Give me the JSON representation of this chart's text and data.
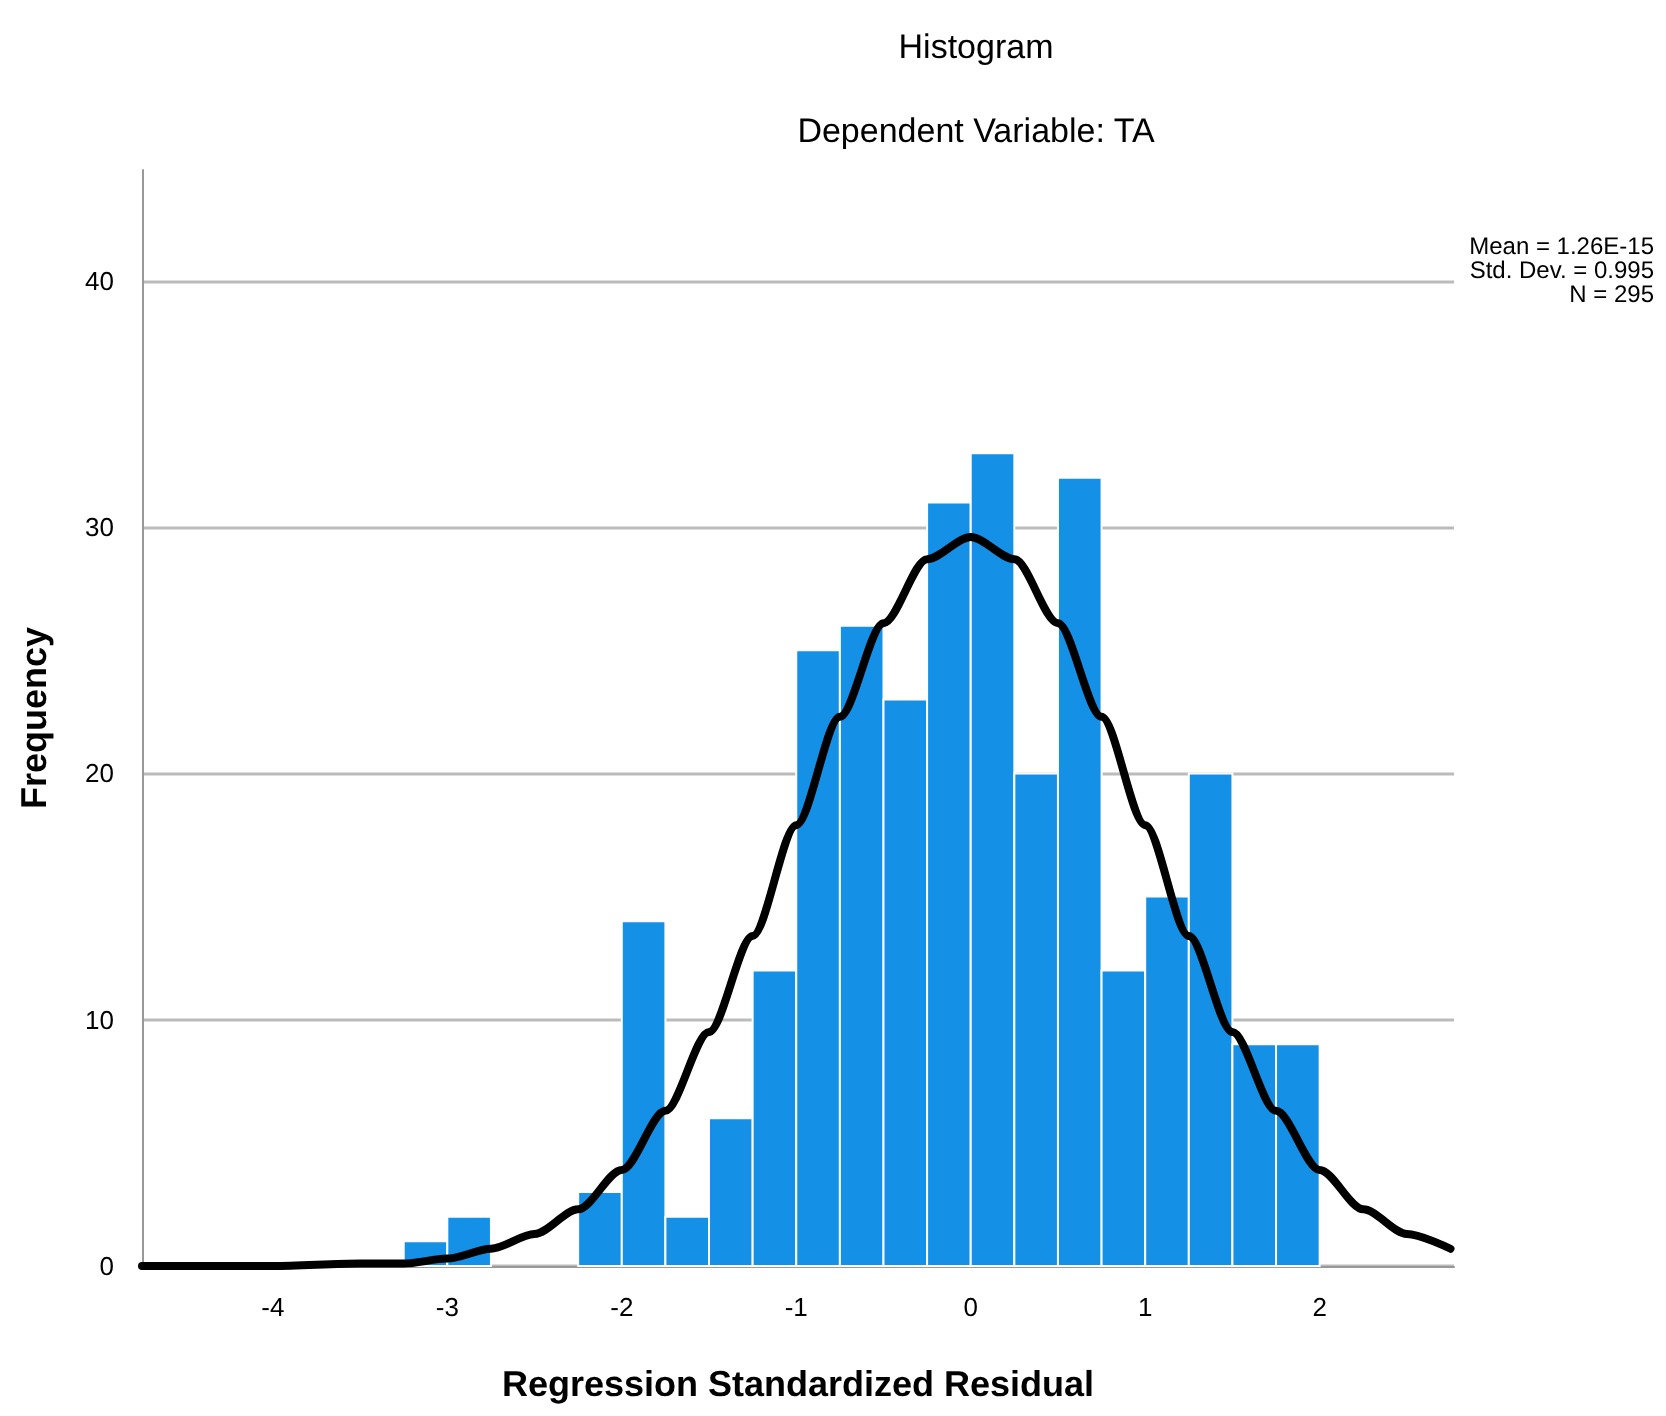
{
  "chart_data": {
    "type": "histogram",
    "title": "Histogram",
    "subtitle": "Dependent Variable: TA",
    "xlabel": "Regression Standardized Residual",
    "ylabel": "Frequency",
    "annotations": [
      "Mean = 1.26E-15",
      "Std. Dev. = 0.995",
      "N = 295"
    ],
    "xlim": [
      -4.75,
      2.77
    ],
    "xticks": [
      -4,
      -3,
      -2,
      -1,
      0,
      1,
      2
    ],
    "ylim": [
      0,
      44.5
    ],
    "yticks": [
      0,
      10,
      20,
      30,
      40
    ],
    "grid": "y",
    "series": [
      {
        "type": "histogram",
        "color": "#1490e6",
        "bins": [
          -3.25,
          -3,
          -2.75,
          -2.5,
          -2.25,
          -2,
          -1.75,
          -1.5,
          -1.25,
          -1,
          -0.75,
          -0.5,
          -0.25,
          0,
          0.25,
          0.5,
          0.75,
          1,
          1.25,
          1.5,
          1.75,
          2
        ],
        "values": [
          1,
          2,
          0,
          0,
          3,
          14,
          2,
          6,
          12,
          25,
          26,
          23,
          31,
          33,
          20,
          32,
          12,
          15,
          20,
          9,
          9
        ]
      },
      {
        "type": "line",
        "color": "#000000",
        "marker": "none",
        "x": [
          -4.75,
          -4,
          -3.5,
          -3.25,
          -3,
          -2.75,
          -2.5,
          -2.25,
          -2,
          -1.75,
          -1.5,
          -1.25,
          -1,
          -0.75,
          -0.5,
          -0.25,
          0,
          0.25,
          0.5,
          0.75,
          1,
          1.25,
          1.5,
          1.75,
          2,
          2.25,
          2.5,
          2.75
        ],
        "values": [
          0,
          0,
          0.1,
          0.1,
          0.3,
          0.7,
          1.3,
          2.3,
          3.9,
          6.3,
          9.5,
          13.4,
          17.9,
          22.3,
          26.1,
          28.7,
          29.6,
          28.7,
          26.1,
          22.3,
          17.9,
          13.4,
          9.5,
          6.3,
          3.9,
          2.3,
          1.3,
          0.7
        ]
      }
    ]
  }
}
